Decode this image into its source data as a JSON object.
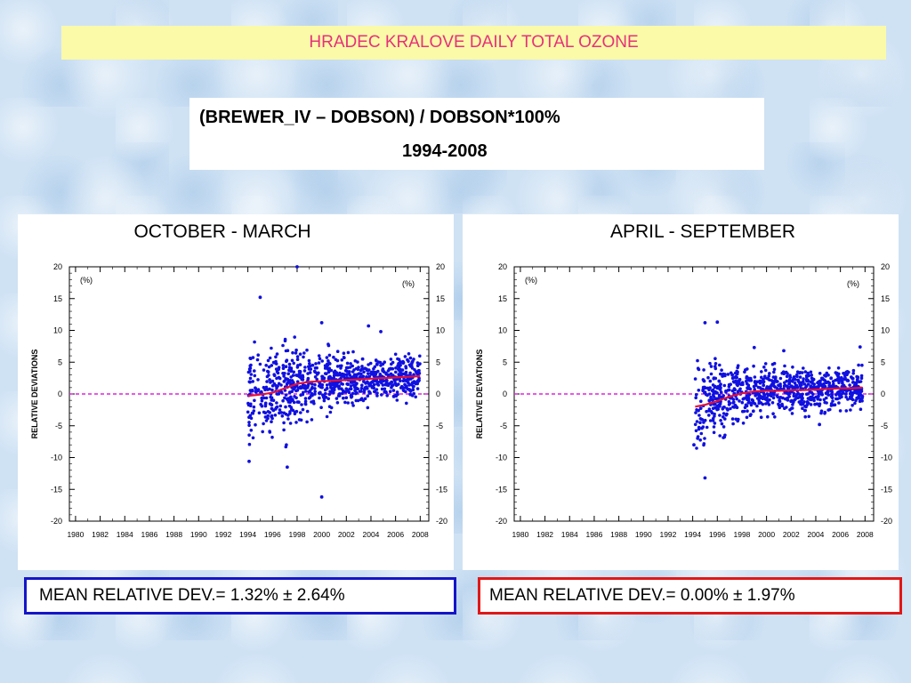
{
  "title": "HRADEC KRALOVE DAILY TOTAL OZONE",
  "subtitle": {
    "line1": "(BREWER_IV – DOBSON) / DOBSON*100%",
    "line2": "1994-2008"
  },
  "colors": {
    "title_bg": "#fafaa8",
    "title_text": "#e8307a",
    "points": "#1010e0",
    "trend": "#e0103a",
    "zero_line": "#e020e0",
    "left_box_border": "#1515c8",
    "right_box_border": "#e01818"
  },
  "chart_data": [
    {
      "type": "scatter",
      "title": "OCTOBER - MARCH",
      "ylabel": "RELATIVE DEVIATIONS",
      "unit_label_left": "(%)",
      "unit_label_right": "(%)",
      "xlim": [
        1979.5,
        2008.7
      ],
      "ylim": [
        -20,
        20
      ],
      "x_ticks": [
        1980,
        1982,
        1984,
        1986,
        1988,
        1990,
        1992,
        1994,
        1996,
        1998,
        2000,
        2002,
        2004,
        2006,
        2008
      ],
      "y_ticks": [
        -20,
        -15,
        -10,
        -5,
        0,
        5,
        10,
        15,
        20
      ],
      "reference_line": 0,
      "scatter": {
        "x_range": [
          1994.0,
          2008.0
        ],
        "mean_curve": [
          [
            1994.0,
            -0.3
          ],
          [
            1995.0,
            -0.1
          ],
          [
            1996.0,
            0.2
          ],
          [
            1997.0,
            0.9
          ],
          [
            1998.0,
            1.6
          ],
          [
            1999.0,
            1.9
          ],
          [
            2000.0,
            2.0
          ],
          [
            2001.0,
            2.1
          ],
          [
            2002.0,
            2.2
          ],
          [
            2003.0,
            2.3
          ],
          [
            2004.0,
            2.4
          ],
          [
            2005.0,
            2.5
          ],
          [
            2006.0,
            2.6
          ],
          [
            2007.0,
            2.7
          ],
          [
            2008.0,
            2.8
          ]
        ],
        "spread_sd": [
          [
            1994.0,
            4.2
          ],
          [
            1997.0,
            4.0
          ],
          [
            1999.0,
            3.0
          ],
          [
            2001.0,
            2.2
          ],
          [
            2008.0,
            1.7
          ]
        ],
        "n_points": 900,
        "outliers": [
          [
            1995.0,
            15.2
          ],
          [
            1998.0,
            20.0
          ],
          [
            2000.0,
            -16.2
          ],
          [
            1997.2,
            -11.5
          ],
          [
            2003.8,
            10.7
          ],
          [
            2004.8,
            9.8
          ],
          [
            2000.0,
            11.2
          ],
          [
            1994.1,
            -10.6
          ]
        ]
      },
      "trend": [
        [
          1994.0,
          -0.3
        ],
        [
          1995.0,
          -0.1
        ],
        [
          1996.0,
          0.2
        ],
        [
          1997.0,
          0.9
        ],
        [
          1998.0,
          1.6
        ],
        [
          1999.0,
          1.9
        ],
        [
          2000.0,
          2.0
        ],
        [
          2001.0,
          2.1
        ],
        [
          2002.0,
          2.2
        ],
        [
          2003.0,
          2.3
        ],
        [
          2004.0,
          2.4
        ],
        [
          2005.0,
          2.5
        ],
        [
          2006.0,
          2.6
        ],
        [
          2007.0,
          2.7
        ],
        [
          2008.0,
          2.8
        ]
      ]
    },
    {
      "type": "scatter",
      "title": "APRIL - SEPTEMBER",
      "ylabel": "RELATIVE DEVIATIONS",
      "unit_label_left": "(%)",
      "unit_label_right": "(%)",
      "xlim": [
        1979.5,
        2008.7
      ],
      "ylim": [
        -20,
        20
      ],
      "x_ticks": [
        1980,
        1982,
        1984,
        1986,
        1988,
        1990,
        1992,
        1994,
        1996,
        1998,
        2000,
        2002,
        2004,
        2006,
        2008
      ],
      "y_ticks": [
        -20,
        -15,
        -10,
        -5,
        0,
        5,
        10,
        15,
        20
      ],
      "reference_line": 0,
      "scatter": {
        "x_range": [
          1994.2,
          2007.8
        ],
        "mean_curve": [
          [
            1994.2,
            -2.0
          ],
          [
            1995.0,
            -1.7
          ],
          [
            1996.0,
            -1.1
          ],
          [
            1997.0,
            -0.4
          ],
          [
            1998.0,
            0.1
          ],
          [
            1999.0,
            0.4
          ],
          [
            2000.0,
            0.5
          ],
          [
            2001.0,
            0.5
          ],
          [
            2002.0,
            0.6
          ],
          [
            2003.0,
            0.6
          ],
          [
            2004.0,
            0.7
          ],
          [
            2005.0,
            0.8
          ],
          [
            2006.0,
            0.9
          ],
          [
            2007.0,
            0.9
          ],
          [
            2007.8,
            1.0
          ]
        ],
        "spread_sd": [
          [
            1994.2,
            3.5
          ],
          [
            1996.0,
            3.0
          ],
          [
            1998.0,
            2.3
          ],
          [
            2000.0,
            1.9
          ],
          [
            2007.8,
            1.7
          ]
        ],
        "n_points": 850,
        "outliers": [
          [
            1995.0,
            -13.2
          ],
          [
            1996.0,
            11.3
          ],
          [
            1995.0,
            11.2
          ],
          [
            1994.1,
            -8.0
          ],
          [
            1999.0,
            7.3
          ],
          [
            2001.4,
            6.8
          ],
          [
            2004.3,
            -4.8
          ],
          [
            2007.6,
            7.4
          ]
        ]
      },
      "trend": [
        [
          1994.2,
          -2.0
        ],
        [
          1995.0,
          -1.7
        ],
        [
          1996.0,
          -1.1
        ],
        [
          1997.0,
          -0.4
        ],
        [
          1998.0,
          0.1
        ],
        [
          1999.0,
          0.4
        ],
        [
          2000.0,
          0.5
        ],
        [
          2001.0,
          0.5
        ],
        [
          2002.0,
          0.6
        ],
        [
          2003.0,
          0.6
        ],
        [
          2004.0,
          0.7
        ],
        [
          2005.0,
          0.8
        ],
        [
          2006.0,
          0.9
        ],
        [
          2007.0,
          0.9
        ],
        [
          2007.8,
          1.0
        ]
      ]
    }
  ],
  "mean_left": "MEAN RELATIVE DEV.=  1.32% ± 2.64%",
  "mean_right": "MEAN RELATIVE DEV.= 0.00% ± 1.97%"
}
